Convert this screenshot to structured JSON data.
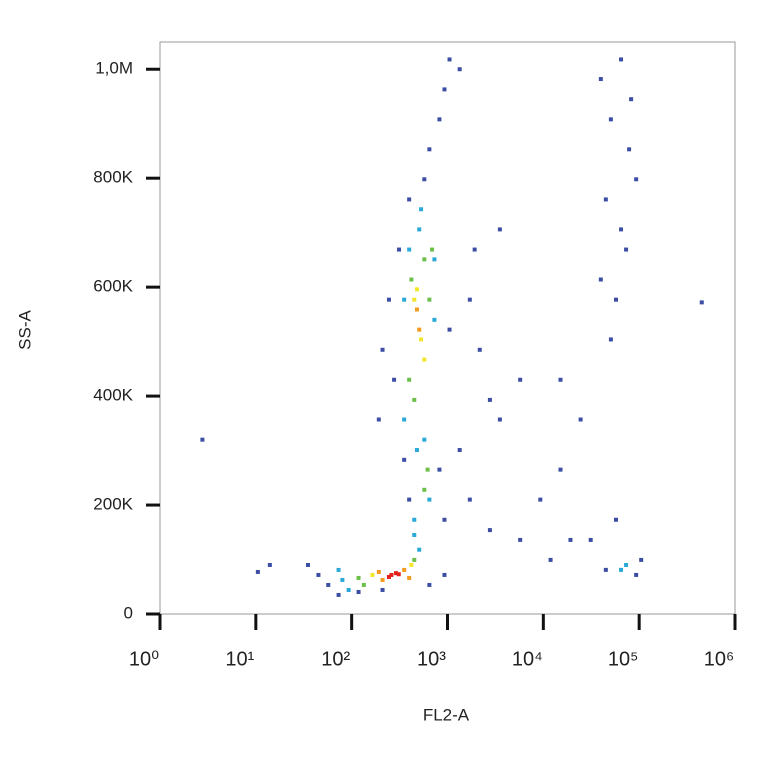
{
  "chart_data": {
    "type": "scatter",
    "xlabel": "FL2-A",
    "ylabel": "SS-A",
    "xscale": "log",
    "xlim": [
      1,
      1000000
    ],
    "ylim": [
      0,
      1050000
    ],
    "xticks": [
      {
        "value": 1,
        "label": "10⁰"
      },
      {
        "value": 10,
        "label": "10¹"
      },
      {
        "value": 100,
        "label": "10²"
      },
      {
        "value": 1000,
        "label": "10³"
      },
      {
        "value": 10000,
        "label": "10⁴"
      },
      {
        "value": 100000,
        "label": "10⁵"
      },
      {
        "value": 1000000,
        "label": "10⁶"
      }
    ],
    "yticks": [
      0,
      {
        "value": 200000,
        "label": "200K"
      },
      {
        "value": 400000,
        "label": "400K"
      },
      {
        "value": 600000,
        "label": "600K"
      },
      {
        "value": 800000,
        "label": "800K"
      },
      {
        "value": 1000000,
        "label": "1,0M"
      }
    ],
    "series": [
      {
        "color": "#3b4ea3",
        "x": [
          57,
          45,
          73,
          118,
          210,
          647,
          930,
          35,
          277,
          312,
          398,
          573,
          647,
          824,
          930,
          1050,
          1340,
          1050,
          1710,
          2170,
          2770,
          3520,
          1340,
          1710,
          2770,
          5730,
          9300,
          15100,
          824,
          930,
          210,
          245,
          192,
          353,
          398,
          3520,
          5730,
          1920,
          39800,
          50700,
          64700,
          82400,
          44900,
          73000,
          57300,
          93000,
          50700,
          64700,
          78500,
          39800,
          44900,
          93000,
          105000,
          57300,
          2.77,
          10.5,
          14,
          450000,
          15100,
          24500,
          11900,
          19200,
          31200
        ],
        "values": [
          53300,
          71700,
          35000,
          40400,
          44100,
          53300,
          71700,
          90000,
          430000,
          669000,
          761000,
          798000,
          853000,
          908000,
          963000,
          1018000,
          1000000,
          522000,
          577000,
          485000,
          393000,
          357000,
          301000,
          210000,
          154000,
          136000,
          210000,
          265000,
          265000,
          173000,
          485000,
          577000,
          357000,
          283000,
          210000,
          706000,
          430000,
          669000,
          982000,
          908000,
          1018000,
          945000,
          761000,
          669000,
          577000,
          798000,
          504000,
          706000,
          853000,
          614000,
          81000,
          71700,
          99300,
          173000,
          320000,
          77200,
          90000,
          572000,
          430000,
          357000,
          99300,
          136000,
          136000
        ]
      },
      {
        "color": "#2aa9d8",
        "x": [
          80,
          93,
          507,
          73,
          450,
          353,
          398,
          507,
          730,
          353,
          480,
          647,
          450,
          573,
          730,
          530,
          73000,
          64700
        ],
        "values": [
          62500,
          44100,
          118000,
          80900,
          145000,
          577000,
          669000,
          706000,
          540000,
          357000,
          301000,
          210000,
          173000,
          320000,
          651000,
          743000,
          90000,
          81000
        ]
      },
      {
        "color": "#6cc04a",
        "x": [
          118,
          134,
          450,
          420,
          573,
          398,
          647,
          450,
          620,
          573,
          690
        ],
        "values": [
          66200,
          53300,
          99300,
          614000,
          651000,
          430000,
          577000,
          393000,
          265000,
          228000,
          669000
        ]
      },
      {
        "color": "#f2e52a",
        "x": [
          165,
          420,
          530,
          450,
          573,
          480
        ],
        "values": [
          71700,
          90000,
          504000,
          577000,
          467000,
          596000
        ]
      },
      {
        "color": "#f39a1f",
        "x": [
          192,
          353,
          210,
          398,
          507,
          480
        ],
        "values": [
          77200,
          80900,
          62500,
          66200,
          522000,
          559000
        ]
      },
      {
        "color": "#e3201b",
        "x": [
          260,
          290,
          245,
          310
        ],
        "values": [
          71700,
          75000,
          68000,
          73000
        ]
      }
    ]
  }
}
